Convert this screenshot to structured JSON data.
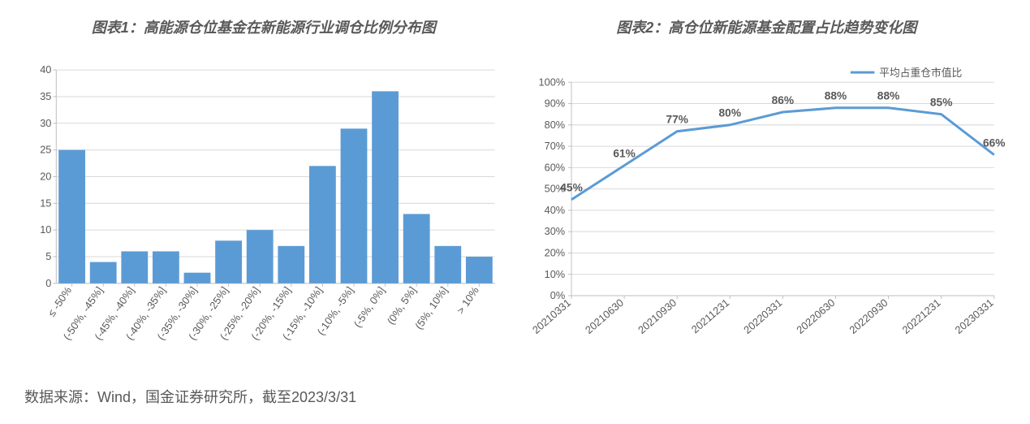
{
  "chart1": {
    "type": "bar",
    "title": "图表1：高能源仓位基金在新能源行业调仓比例分布图",
    "title_fontsize": 18,
    "title_color": "#595959",
    "categories": [
      "≤ -50%",
      "(-50%, -45%]",
      "(-45%, -40%]",
      "(-40%, -35%]",
      "(-35%, -30%]",
      "(-30%, -25%]",
      "(-25%, -20%]",
      "(-20%, -15%]",
      "(-15%, -10%]",
      "(-10%, -5%]",
      "(-5%, 0%]",
      "(0%, 5%]",
      "(5%, 10%]",
      "> 10%"
    ],
    "values": [
      25,
      4,
      6,
      6,
      2,
      8,
      10,
      7,
      22,
      29,
      36,
      13,
      7,
      5
    ],
    "bar_color": "#5b9bd5",
    "ylim": [
      0,
      40
    ],
    "ytick_step": 5,
    "axis_color": "#bfbfbf",
    "grid_color": "#d9d9d9",
    "tick_font_size": 13,
    "tick_color": "#595959",
    "bar_gap_ratio": 0.15,
    "background_color": "#ffffff"
  },
  "chart2": {
    "type": "line",
    "title": "图表2：高仓位新能源基金配置占比趋势变化图",
    "title_fontsize": 18,
    "title_color": "#595959",
    "legend_label": "平均占重仓市值比",
    "categories": [
      "20210331",
      "20210630",
      "20210930",
      "20211231",
      "20220331",
      "20220630",
      "20220930",
      "20221231",
      "20230331"
    ],
    "values_pct": [
      45,
      61,
      77,
      80,
      86,
      88,
      88,
      85,
      66
    ],
    "data_labels": [
      "45%",
      "61%",
      "77%",
      "80%",
      "86%",
      "88%",
      "88%",
      "85%",
      "66%"
    ],
    "line_color": "#5b9bd5",
    "line_width": 3,
    "ylim": [
      0,
      100
    ],
    "ytick_step": 10,
    "ytick_format_suffix": "%",
    "axis_color": "#bfbfbf",
    "grid_color": "#d9d9d9",
    "tick_font_size": 13,
    "tick_color": "#595959",
    "label_font_size": 14,
    "label_font_weight": "600",
    "background_color": "#ffffff"
  },
  "source": {
    "text": "数据来源：Wind，国金证券研究所，截至2023/3/31",
    "font_size": 18,
    "color": "#595959"
  }
}
